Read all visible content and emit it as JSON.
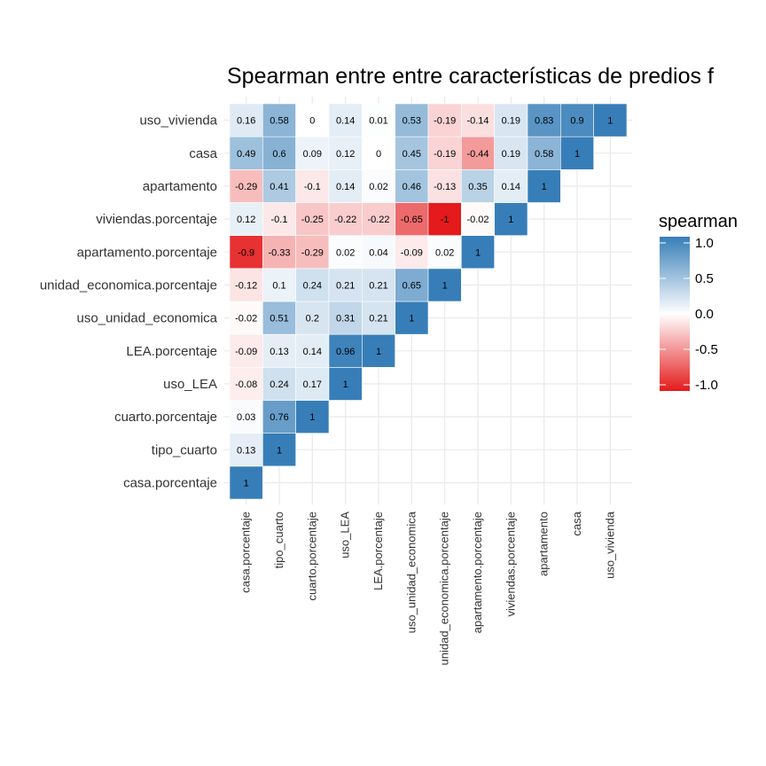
{
  "chart_data": {
    "type": "heatmap",
    "title": "Spearman entre entre características de predios f",
    "xlabel": "",
    "ylabel": "",
    "variables": [
      "casa.porcentaje",
      "tipo_cuarto",
      "cuarto.porcentaje",
      "uso_LEA",
      "LEA.porcentaje",
      "uso_unidad_economica",
      "unidad_economica.porcentaje",
      "apartamento.porcentaje",
      "viviendas.porcentaje",
      "apartamento",
      "casa",
      "uso_vivienda"
    ],
    "values": [
      [
        1,
        null,
        null,
        null,
        null,
        null,
        null,
        null,
        null,
        null,
        null,
        null
      ],
      [
        0.13,
        1,
        null,
        null,
        null,
        null,
        null,
        null,
        null,
        null,
        null,
        null
      ],
      [
        0.03,
        0.76,
        1,
        null,
        null,
        null,
        null,
        null,
        null,
        null,
        null,
        null
      ],
      [
        -0.08,
        0.24,
        0.17,
        1,
        null,
        null,
        null,
        null,
        null,
        null,
        null,
        null
      ],
      [
        -0.09,
        0.13,
        0.14,
        0.96,
        1,
        null,
        null,
        null,
        null,
        null,
        null,
        null
      ],
      [
        -0.02,
        0.51,
        0.2,
        0.31,
        0.21,
        1,
        null,
        null,
        null,
        null,
        null,
        null
      ],
      [
        -0.12,
        0.1,
        0.24,
        0.21,
        0.21,
        0.65,
        1,
        null,
        null,
        null,
        null,
        null
      ],
      [
        -0.9,
        -0.33,
        -0.29,
        0.02,
        0.04,
        -0.09,
        0.02,
        1,
        null,
        null,
        null,
        null
      ],
      [
        0.12,
        -0.1,
        -0.25,
        -0.22,
        -0.22,
        -0.65,
        -1,
        -0.02,
        1,
        null,
        null,
        null
      ],
      [
        -0.29,
        0.41,
        -0.1,
        0.14,
        0.02,
        0.46,
        -0.13,
        0.35,
        0.14,
        1,
        null,
        null
      ],
      [
        0.49,
        0.6,
        0.09,
        0.12,
        0,
        0.45,
        -0.19,
        -0.44,
        0.19,
        0.58,
        1,
        null
      ],
      [
        0.16,
        0.58,
        0,
        0.14,
        0.01,
        0.53,
        -0.19,
        -0.14,
        0.19,
        0.83,
        0.9,
        1
      ]
    ],
    "color_scale": {
      "low": "#e41a1c",
      "mid": "#ffffff",
      "high": "#377eb8",
      "limits": [
        -1,
        1
      ]
    },
    "legend": {
      "title": "spearman",
      "ticks": [
        1.0,
        0.5,
        0.0,
        -0.5,
        -1.0
      ],
      "tick_labels": [
        "1.0",
        "0.5",
        "0.0",
        "-0.5",
        "-1.0"
      ],
      "position": "right"
    },
    "grid": true,
    "grid_color": "#ebebeb"
  }
}
